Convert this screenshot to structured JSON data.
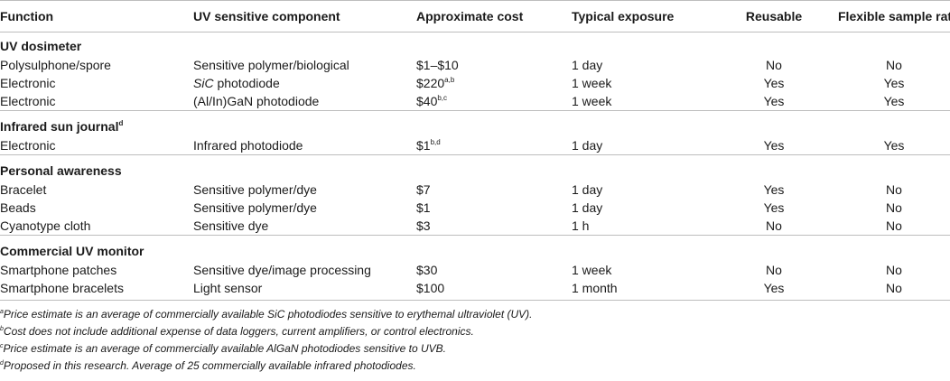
{
  "headers": [
    "Function",
    "UV sensitive component",
    "Approximate cost",
    "Typical exposure",
    "Reusable",
    "Flexible sample rate"
  ],
  "groups": [
    {
      "title": "UV dosimeter",
      "rows": [
        {
          "function": "Polysulphone/spore",
          "component": "Sensitive polymer/biological",
          "cost": "$1–$10",
          "cost_sup": "",
          "exposure": "1 day",
          "reusable": "No",
          "flexible": "No"
        },
        {
          "function": "Electronic",
          "component_italic": "SiC",
          "component": " photodiode",
          "cost": "$220",
          "cost_sup": "a,b",
          "exposure": "1 week",
          "reusable": "Yes",
          "flexible": "Yes"
        },
        {
          "function": "Electronic",
          "component": "(Al/In)GaN photodiode",
          "cost": "$40",
          "cost_sup": "b,c",
          "exposure": "1 week",
          "reusable": "Yes",
          "flexible": "Yes"
        }
      ]
    },
    {
      "title": "Infrared sun journal",
      "title_sup": "d",
      "rows": [
        {
          "function": "Electronic",
          "component": "Infrared photodiode",
          "cost": "$1",
          "cost_sup": "b,d",
          "exposure": "1 day",
          "reusable": "Yes",
          "flexible": "Yes"
        }
      ]
    },
    {
      "title": "Personal awareness",
      "rows": [
        {
          "function": "Bracelet",
          "component": "Sensitive polymer/dye",
          "cost": "$7",
          "cost_sup": "",
          "exposure": "1 day",
          "reusable": "Yes",
          "flexible": "No"
        },
        {
          "function": "Beads",
          "component": "Sensitive polymer/dye",
          "cost": "$1",
          "cost_sup": "",
          "exposure": "1 day",
          "reusable": "Yes",
          "flexible": "No"
        },
        {
          "function": "Cyanotype cloth",
          "component": "Sensitive dye",
          "cost": "$3",
          "cost_sup": "",
          "exposure": "1 h",
          "reusable": "No",
          "flexible": "No"
        }
      ]
    },
    {
      "title": "Commercial UV monitor",
      "rows": [
        {
          "function": "Smartphone patches",
          "component": "Sensitive dye/image processing",
          "cost": "$30",
          "cost_sup": "",
          "exposure": "1 week",
          "reusable": "No",
          "flexible": "No"
        },
        {
          "function": "Smartphone bracelets",
          "component": "Light sensor",
          "cost": "$100",
          "cost_sup": "",
          "exposure": "1 month",
          "reusable": "Yes",
          "flexible": "No"
        }
      ]
    }
  ],
  "footnotes": [
    {
      "mark": "a",
      "text": "Price estimate is an average of commercially available SiC photodiodes sensitive to erythemal ultraviolet (UV)."
    },
    {
      "mark": "b",
      "text": "Cost does not include additional expense of data loggers, current amplifiers, or control electronics."
    },
    {
      "mark": "c",
      "text": "Price estimate is an average of commercially available AlGaN photodiodes sensitive to UVB."
    },
    {
      "mark": "d",
      "text": "Proposed in this research. Average of 25 commercially available infrared photodiodes."
    }
  ]
}
